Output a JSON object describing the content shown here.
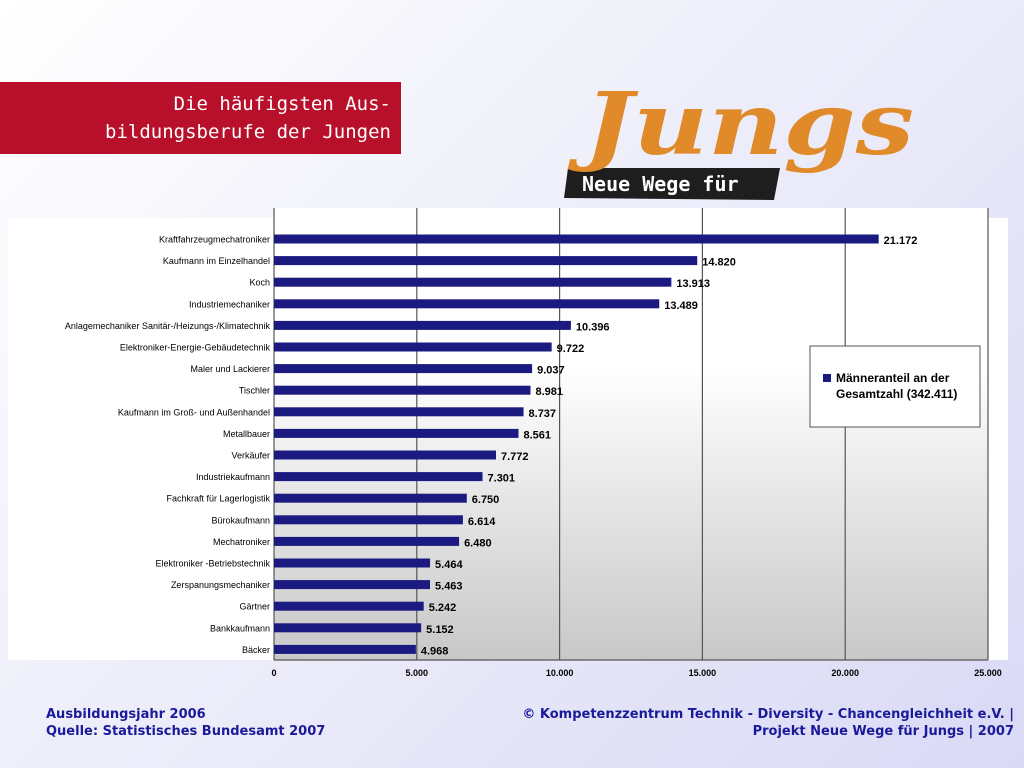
{
  "slide": {
    "title_line1": "Die häufigsten Aus-",
    "title_line2": "bildungsberufe der Jungen"
  },
  "logo": {
    "wordmark": "Jungs",
    "tagline": "Neue Wege für"
  },
  "footer": {
    "left_line1": "Ausbildungsjahr 2006",
    "left_line2": "Quelle: Statistisches Bundesamt 2007",
    "right_line1": "© Kompetenzzentrum Technik - Diversity - Chancengleichheit e.V. |",
    "right_line2": "Projekt Neue Wege für Jungs | 2007"
  },
  "colors": {
    "title_bg": "#b8102a",
    "bar": "#1a1a80",
    "footer_text": "#1a1a9a"
  },
  "chart_data": {
    "type": "bar",
    "orientation": "horizontal",
    "categories": [
      "Kraftfahrzeugmechatroniker",
      "Kaufmann im Einzelhandel",
      "Koch",
      "Industriemechaniker",
      "Anlagemechaniker Sanitär-/Heizungs-/Klimatechnik",
      "Elektroniker-Energie-Gebäudetechnik",
      "Maler und Lackierer",
      "Tischler",
      "Kaufmann im Groß- und Außenhandel",
      "Metallbauer",
      "Verkäufer",
      "Industriekaufmann",
      "Fachkraft für Lagerlogistik",
      "Bürokaufmann",
      "Mechatroniker",
      "Elektroniker -Betriebstechnik",
      "Zerspanungsmechaniker",
      "Gärtner",
      "Bankkaufmann",
      "Bäcker"
    ],
    "values": [
      21172,
      14820,
      13913,
      13489,
      10396,
      9722,
      9037,
      8981,
      8737,
      8561,
      7772,
      7301,
      6750,
      6614,
      6480,
      5464,
      5463,
      5242,
      5152,
      4968
    ],
    "value_labels": [
      "21.172",
      "14.820",
      "13.913",
      "13.489",
      "10.396",
      "9.722",
      "9.037",
      "8.981",
      "8.737",
      "8.561",
      "7.772",
      "7.301",
      "6.750",
      "6.614",
      "6.480",
      "5.464",
      "5.463",
      "5.242",
      "5.152",
      "4.968"
    ],
    "x_ticks": [
      0,
      5000,
      10000,
      15000,
      20000,
      25000
    ],
    "x_tick_labels": [
      "0",
      "5.000",
      "10.000",
      "15.000",
      "20.000",
      "25.000"
    ],
    "xlim": [
      0,
      25000
    ],
    "legend": {
      "label_line1": "Männeranteil an der",
      "label_line2": "Gesamtzahl (342.411)",
      "placement": "right"
    },
    "grid": "vertical"
  }
}
